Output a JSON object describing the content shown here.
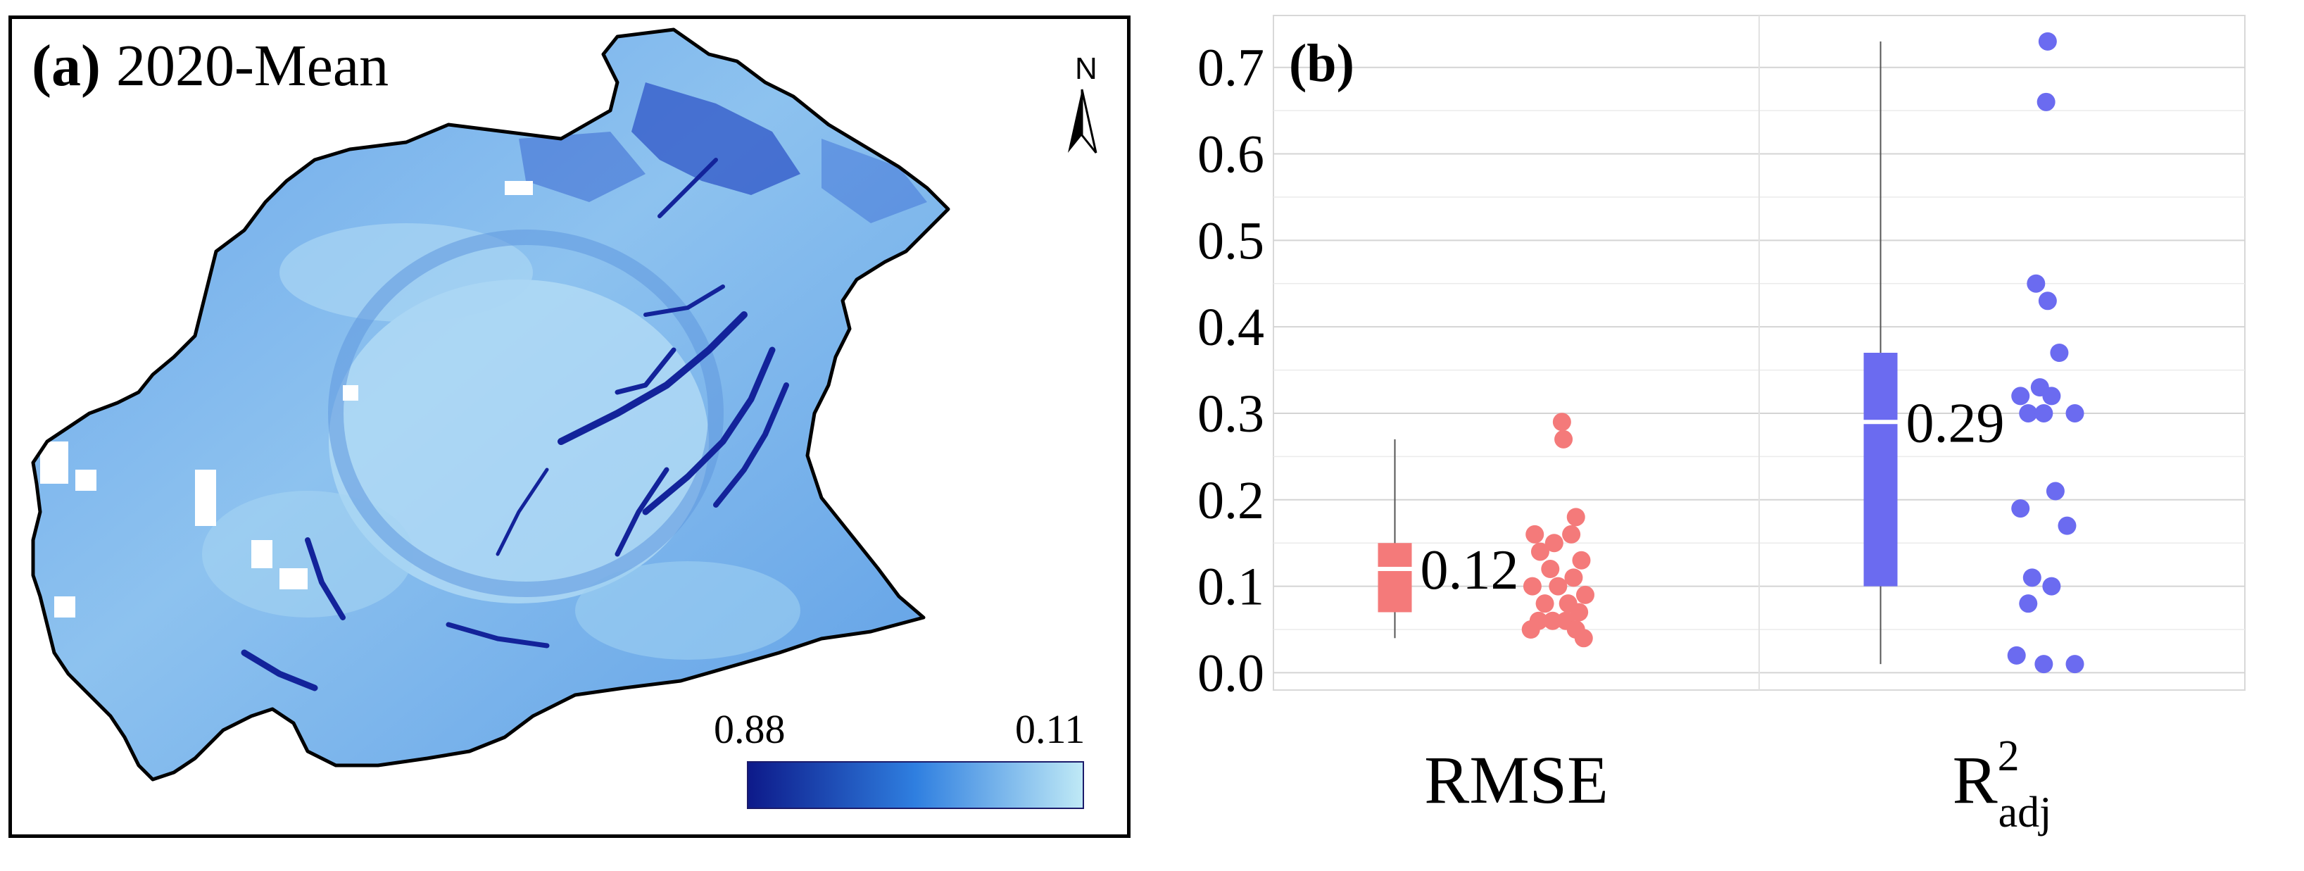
{
  "panel_a": {
    "label": "(a)",
    "title": "2020-Mean",
    "north_label": "N",
    "legend": {
      "max_label": "0.88",
      "min_label": "0.11",
      "color_high": "#0d1a8a",
      "color_mid": "#2f7fe0",
      "color_low": "#bfe9f6"
    }
  },
  "chart_data": {
    "type": "box",
    "panel_label": "(b)",
    "categories": [
      "RMSE",
      "R2adj"
    ],
    "category_labels": [
      {
        "base": "RMSE",
        "sup": "",
        "sub": ""
      },
      {
        "base": "R",
        "sup": "2",
        "sub": "adj"
      }
    ],
    "ylim": [
      -0.02,
      0.76
    ],
    "yticks": [
      0.0,
      0.1,
      0.2,
      0.3,
      0.4,
      0.5,
      0.6,
      0.7
    ],
    "ytick_labels": [
      "0.0",
      "0.1",
      "0.2",
      "0.3",
      "0.4",
      "0.5",
      "0.6",
      "0.7"
    ],
    "grid": true,
    "series": [
      {
        "name": "RMSE",
        "color": "#f47a7a",
        "whisker_low": 0.04,
        "q1": 0.07,
        "median": 0.12,
        "q3": 0.15,
        "whisker_high": 0.27,
        "median_label": "0.12",
        "points": [
          {
            "x": 0.4,
            "y": 0.29
          },
          {
            "x": 0.42,
            "y": 0.27
          },
          {
            "x": 0.58,
            "y": 0.18
          },
          {
            "x": 0.05,
            "y": 0.16
          },
          {
            "x": 0.3,
            "y": 0.15
          },
          {
            "x": 0.52,
            "y": 0.16
          },
          {
            "x": 0.12,
            "y": 0.14
          },
          {
            "x": 0.65,
            "y": 0.13
          },
          {
            "x": 0.25,
            "y": 0.12
          },
          {
            "x": 0.55,
            "y": 0.11
          },
          {
            "x": 0.02,
            "y": 0.1
          },
          {
            "x": 0.35,
            "y": 0.1
          },
          {
            "x": 0.7,
            "y": 0.09
          },
          {
            "x": 0.18,
            "y": 0.08
          },
          {
            "x": 0.48,
            "y": 0.08
          },
          {
            "x": 0.62,
            "y": 0.07
          },
          {
            "x": 0.1,
            "y": 0.06
          },
          {
            "x": 0.28,
            "y": 0.06
          },
          {
            "x": 0.45,
            "y": 0.06
          },
          {
            "x": 0.58,
            "y": 0.05
          },
          {
            "x": 0.0,
            "y": 0.05
          },
          {
            "x": 0.68,
            "y": 0.04
          }
        ]
      },
      {
        "name": "R2adj",
        "color": "#6b6bf0",
        "whisker_low": 0.01,
        "q1": 0.1,
        "median": 0.29,
        "q3": 0.37,
        "whisker_high": 0.73,
        "median_label": "0.29",
        "points": [
          {
            "x": 0.4,
            "y": 0.73
          },
          {
            "x": 0.38,
            "y": 0.66
          },
          {
            "x": 0.25,
            "y": 0.45
          },
          {
            "x": 0.4,
            "y": 0.43
          },
          {
            "x": 0.55,
            "y": 0.37
          },
          {
            "x": 0.05,
            "y": 0.32
          },
          {
            "x": 0.3,
            "y": 0.33
          },
          {
            "x": 0.45,
            "y": 0.32
          },
          {
            "x": 0.75,
            "y": 0.3
          },
          {
            "x": 0.15,
            "y": 0.3
          },
          {
            "x": 0.35,
            "y": 0.3
          },
          {
            "x": 0.5,
            "y": 0.21
          },
          {
            "x": 0.05,
            "y": 0.19
          },
          {
            "x": 0.65,
            "y": 0.17
          },
          {
            "x": 0.2,
            "y": 0.11
          },
          {
            "x": 0.45,
            "y": 0.1
          },
          {
            "x": 0.15,
            "y": 0.08
          },
          {
            "x": 0.0,
            "y": 0.02
          },
          {
            "x": 0.75,
            "y": 0.01
          },
          {
            "x": 0.35,
            "y": 0.01
          }
        ]
      }
    ]
  }
}
